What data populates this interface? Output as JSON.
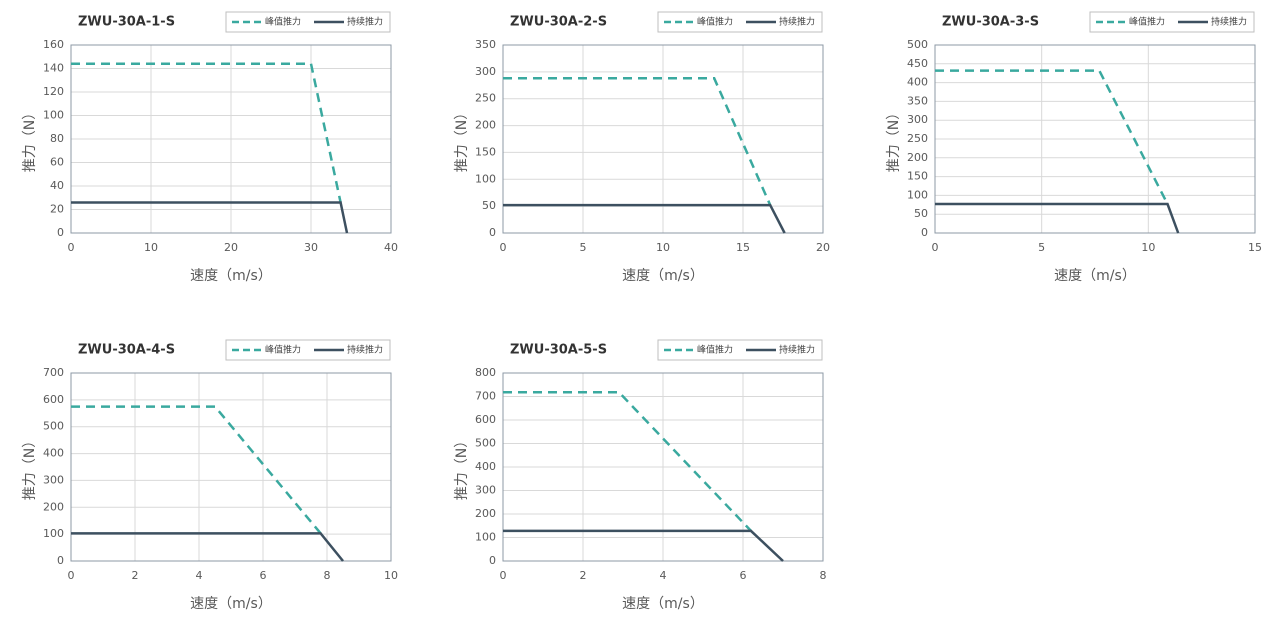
{
  "chart_data": [
    {
      "type": "line",
      "title": "ZWU-30A-1-S",
      "x_label": "速度（m/s）",
      "y_label": "推力（N）",
      "xlim": [
        0,
        40
      ],
      "xticks": [
        0,
        10,
        20,
        30,
        40
      ],
      "ylim": [
        0,
        160
      ],
      "yticks": [
        0,
        20,
        40,
        60,
        80,
        100,
        120,
        140,
        160
      ],
      "grid": true,
      "series": [
        {
          "name": "峰值推力",
          "color": "#3aa99f",
          "dashed": true,
          "x": [
            0,
            30,
            33.7
          ],
          "values": [
            144,
            144,
            26
          ]
        },
        {
          "name": "持续推力",
          "color": "#3d5060",
          "dashed": false,
          "x": [
            0,
            33.7,
            34.5
          ],
          "values": [
            26,
            26,
            0
          ]
        }
      ]
    },
    {
      "type": "line",
      "title": "ZWU-30A-2-S",
      "x_label": "速度（m/s）",
      "y_label": "推力（N）",
      "xlim": [
        0,
        20
      ],
      "xticks": [
        0,
        5,
        10,
        15,
        20
      ],
      "ylim": [
        0,
        350
      ],
      "yticks": [
        0,
        50,
        100,
        150,
        200,
        250,
        300,
        350
      ],
      "grid": true,
      "series": [
        {
          "name": "峰值推力",
          "color": "#3aa99f",
          "dashed": true,
          "x": [
            0,
            13.2,
            16.7
          ],
          "values": [
            288,
            288,
            52
          ]
        },
        {
          "name": "持续推力",
          "color": "#3d5060",
          "dashed": false,
          "x": [
            0,
            16.7,
            17.6
          ],
          "values": [
            52,
            52,
            0
          ]
        }
      ]
    },
    {
      "type": "line",
      "title": "ZWU-30A-3-S",
      "x_label": "速度（m/s）",
      "y_label": "推力（N）",
      "xlim": [
        0,
        15
      ],
      "xticks": [
        0,
        5,
        10,
        15
      ],
      "ylim": [
        0,
        500
      ],
      "yticks": [
        0,
        50,
        100,
        150,
        200,
        250,
        300,
        350,
        400,
        450,
        500
      ],
      "grid": true,
      "series": [
        {
          "name": "峰值推力",
          "color": "#3aa99f",
          "dashed": true,
          "x": [
            0,
            7.7,
            10.9
          ],
          "values": [
            432,
            432,
            77
          ]
        },
        {
          "name": "持续推力",
          "color": "#3d5060",
          "dashed": false,
          "x": [
            0,
            10.9,
            11.4
          ],
          "values": [
            77,
            77,
            0
          ]
        }
      ]
    },
    {
      "type": "line",
      "title": "ZWU-30A-4-S",
      "x_label": "速度（m/s）",
      "y_label": "推力（N）",
      "xlim": [
        0,
        10
      ],
      "xticks": [
        0,
        2,
        4,
        6,
        8,
        10
      ],
      "ylim": [
        0,
        700
      ],
      "yticks": [
        0,
        100,
        200,
        300,
        400,
        500,
        600,
        700
      ],
      "grid": true,
      "series": [
        {
          "name": "峰值推力",
          "color": "#3aa99f",
          "dashed": true,
          "x": [
            0,
            4.5,
            7.8
          ],
          "values": [
            575,
            575,
            103
          ]
        },
        {
          "name": "持续推力",
          "color": "#3d5060",
          "dashed": false,
          "x": [
            0,
            7.8,
            8.5
          ],
          "values": [
            103,
            103,
            0
          ]
        }
      ]
    },
    {
      "type": "line",
      "title": "ZWU-30A-5-S",
      "x_label": "速度（m/s）",
      "y_label": "推力（N）",
      "xlim": [
        0,
        8
      ],
      "xticks": [
        0,
        2,
        4,
        6,
        8
      ],
      "ylim": [
        0,
        800
      ],
      "yticks": [
        0,
        100,
        200,
        300,
        400,
        500,
        600,
        700,
        800
      ],
      "grid": true,
      "series": [
        {
          "name": "峰值推力",
          "color": "#3aa99f",
          "dashed": true,
          "x": [
            0,
            2.9,
            6.2
          ],
          "values": [
            718,
            718,
            128
          ]
        },
        {
          "name": "持续推力",
          "color": "#3d5060",
          "dashed": false,
          "x": [
            0,
            6.2,
            7.0
          ],
          "values": [
            128,
            128,
            0
          ]
        }
      ]
    }
  ]
}
